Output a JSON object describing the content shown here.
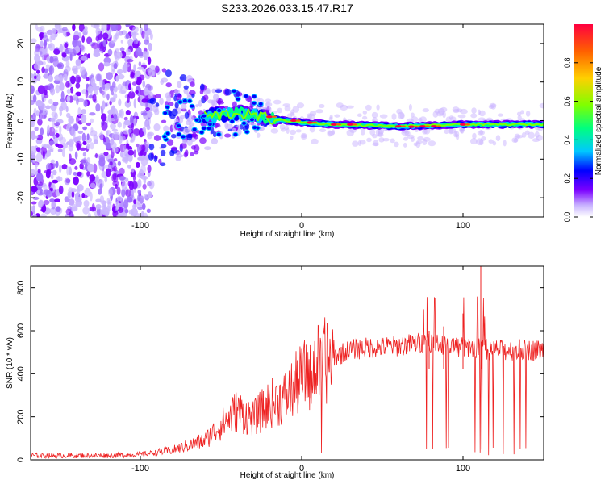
{
  "title": "S233.2026.033.15.47.R17",
  "chart_data": [
    {
      "type": "heatmap",
      "name": "spectrogram",
      "xlabel": "Height of straight line (km)",
      "ylabel": "Frequency (Hz)",
      "xlim": [
        -168,
        150
      ],
      "ylim": [
        -25,
        25
      ],
      "xticks": [
        -100,
        0,
        100
      ],
      "yticks": [
        -20,
        -10,
        0,
        10,
        20
      ],
      "colorbar": {
        "label": "Normalized spectral amplitude",
        "range": [
          0,
          1
        ],
        "ticks": [
          0.0,
          0.2,
          0.4,
          0.6,
          0.8
        ],
        "tick_labels": [
          "0.0",
          "0.2",
          "0.4",
          "0.6",
          "0.8"
        ],
        "colors": [
          "#ffffff",
          "#c9b4ff",
          "#7b00ff",
          "#0000ff",
          "#00c8ff",
          "#00ff7f",
          "#7fff00",
          "#ffd000",
          "#ff6000",
          "#ff0040"
        ]
      },
      "ridge": {
        "description_points_km": [
          -60,
          -40,
          -20,
          0,
          20,
          60,
          100,
          150
        ],
        "center_hz": [
          1,
          2,
          0.5,
          -0.5,
          -1,
          -1.5,
          -1,
          -1
        ]
      }
    },
    {
      "type": "line",
      "name": "snr",
      "xlabel": "Height of straight line (km)",
      "ylabel": "SNR (10 * v/v)",
      "xlim": [
        -168,
        150
      ],
      "ylim": [
        0,
        900
      ],
      "xticks": [
        -100,
        0,
        100
      ],
      "yticks": [
        0,
        200,
        400,
        600,
        800
      ],
      "color": "#ee2222",
      "envelope": {
        "x": [
          -168,
          -120,
          -100,
          -80,
          -60,
          -50,
          -40,
          -30,
          -20,
          -10,
          0,
          10,
          20,
          30,
          40,
          60,
          80,
          100,
          110,
          120,
          150
        ],
        "mean": [
          20,
          20,
          25,
          45,
          90,
          160,
          230,
          190,
          260,
          290,
          380,
          440,
          480,
          510,
          520,
          530,
          550,
          520,
          520,
          510,
          510
        ]
      },
      "peaks": [
        {
          "x": 111,
          "y": 900
        },
        {
          "x": 100,
          "y": 680
        },
        {
          "x": 88,
          "y": 620
        },
        {
          "x": 79,
          "y": 600
        }
      ]
    }
  ]
}
